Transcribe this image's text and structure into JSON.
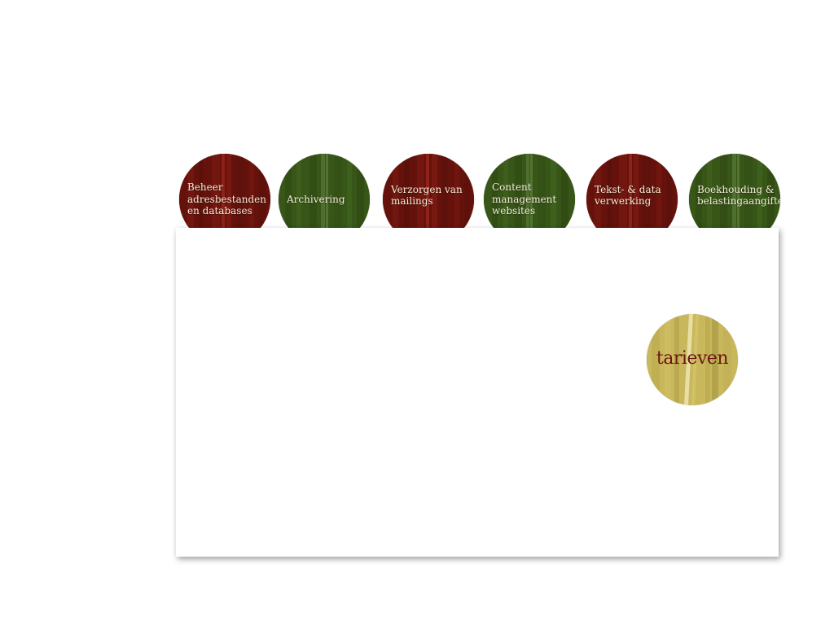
{
  "nav": {
    "items": [
      {
        "label": "Beheer\nadresbestanden\nen databases",
        "theme": "red"
      },
      {
        "label": "Archivering",
        "theme": "green"
      },
      {
        "label": "Verzorgen van\nmailings",
        "theme": "red"
      },
      {
        "label": "Content\nmanagement\nwebsites",
        "theme": "green"
      },
      {
        "label": "Tekst- & data\nverwerking",
        "theme": "red"
      },
      {
        "label": "Boekhouding  &\nbelastingaangifte",
        "theme": "green"
      }
    ]
  },
  "main": {
    "tarieven_label": "tarieven"
  },
  "colors": {
    "red_tab": "#6b140d",
    "green_tab": "#3a5a1c",
    "gold_button": "#c8b65a",
    "tab_text": "#f3ecd8",
    "gold_button_text": "#6b1710",
    "background": "#ffffff"
  }
}
